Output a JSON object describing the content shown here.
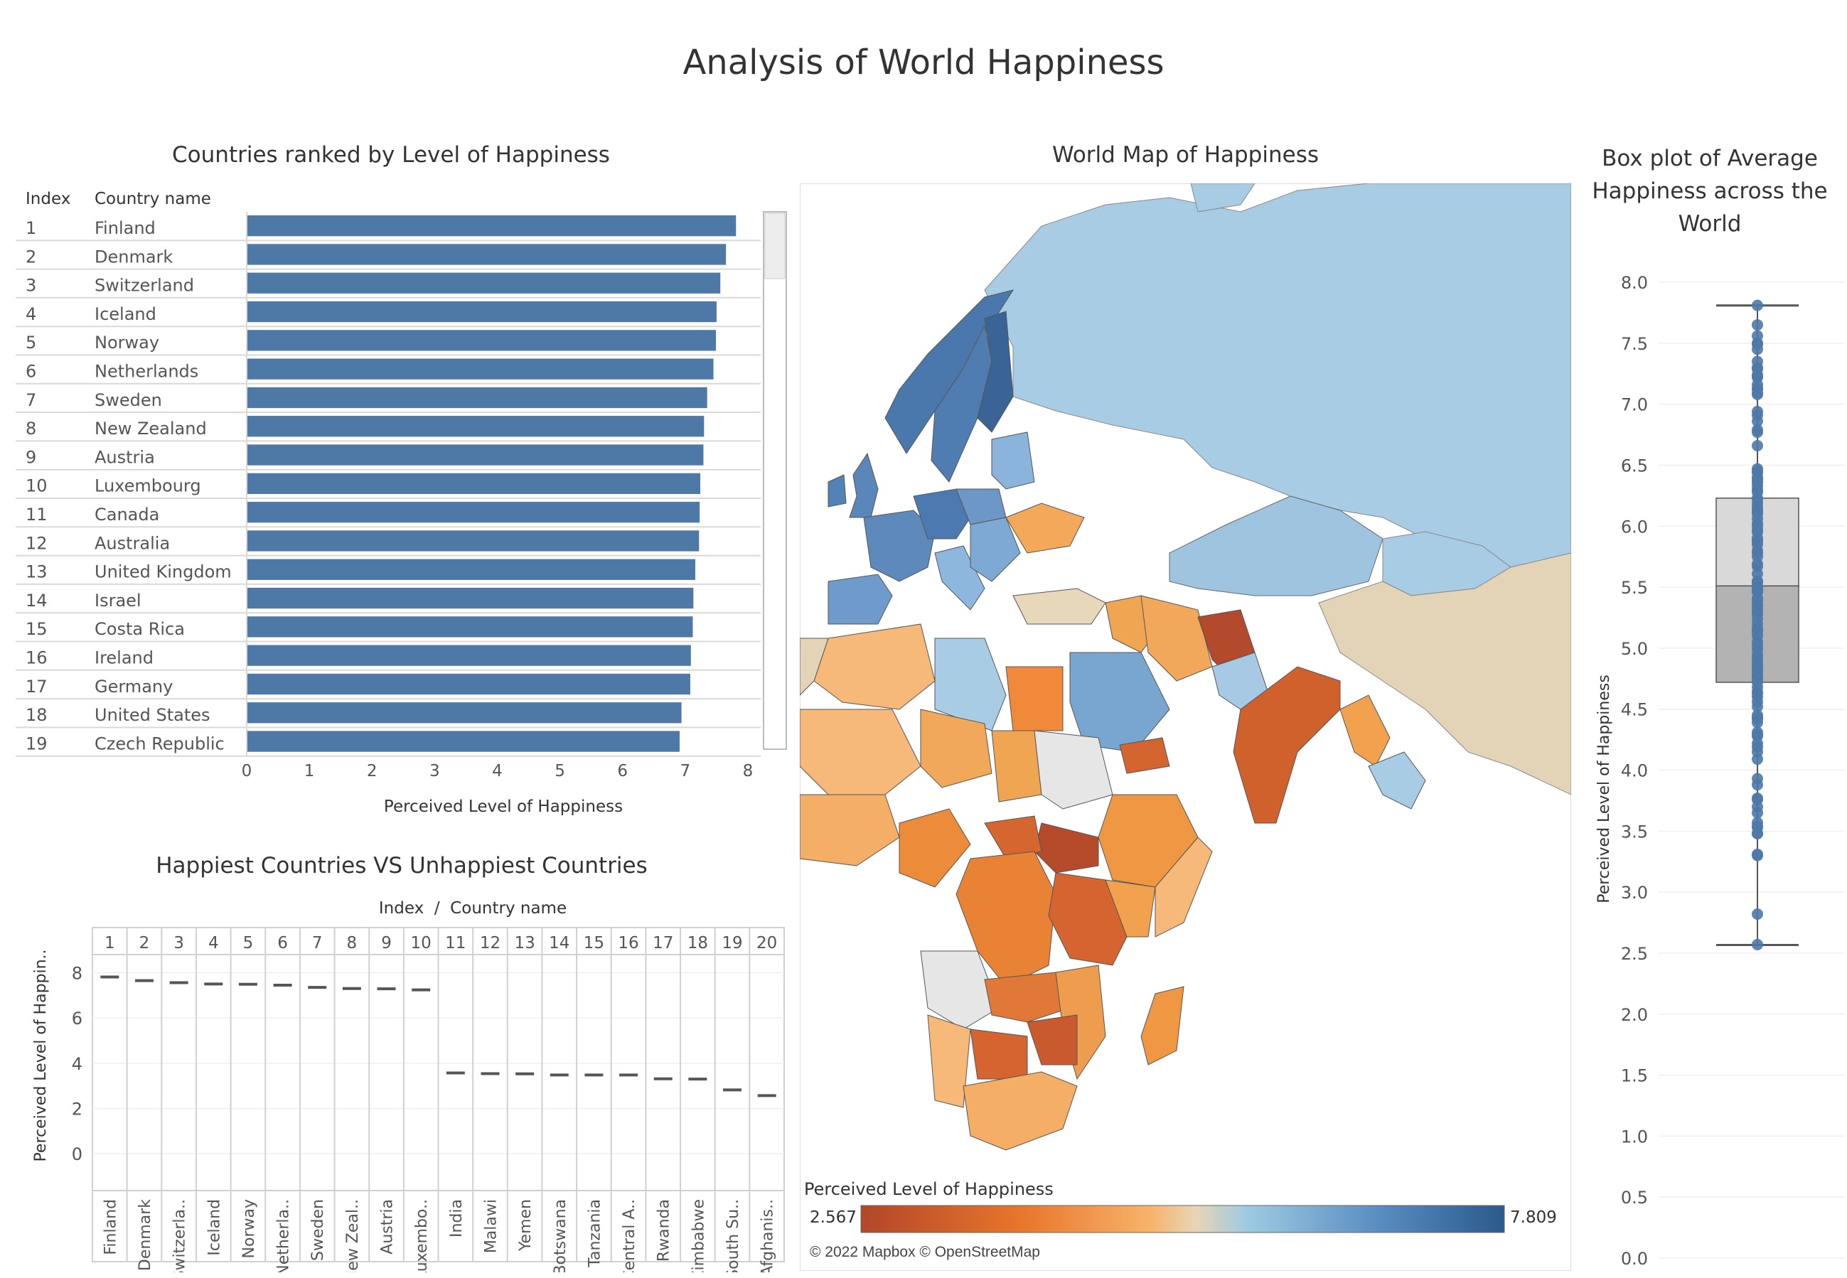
{
  "dashboard": {
    "title": "Analysis of World Happiness"
  },
  "ranked_panel": {
    "title": "Countries ranked by Level of Happiness",
    "index_header": "Index",
    "country_header": "Country name"
  },
  "map_panel": {
    "title": "World Map of Happiness",
    "legend_title": "Perceived Level of Happiness",
    "legend_min": "2.567",
    "legend_max": "7.809",
    "credit": "© 2022 Mapbox © OpenStreetMap",
    "colors": {
      "low": "#b2472a",
      "mid_low": "#f0a050",
      "neutral": "#e8d5b7",
      "mid_high": "#9ecae1",
      "high": "#2b5a8c",
      "no_data": "#e6e6e6",
      "water": "#ffffff"
    }
  },
  "box_panel": {
    "title_lines": [
      "Box plot of Average",
      "Happiness across the",
      "World"
    ]
  },
  "compare_panel": {
    "title": "Happiest Countries VS Unhappiest Countries",
    "header": "Index  /  Country name"
  },
  "chart_data": [
    {
      "type": "bar",
      "orientation": "horizontal",
      "title": "Countries ranked by Level of Happiness",
      "xlabel": "Perceived Level of Happiness",
      "xlim": [
        0,
        8.3
      ],
      "x_ticks": [
        "0",
        "1",
        "2",
        "3",
        "4",
        "5",
        "6",
        "7",
        "8"
      ],
      "bar_color": "#4e79a7",
      "rows": [
        {
          "index": "1",
          "country": "Finland",
          "value": 7.81
        },
        {
          "index": "2",
          "country": "Denmark",
          "value": 7.65
        },
        {
          "index": "3",
          "country": "Switzerland",
          "value": 7.56
        },
        {
          "index": "4",
          "country": "Iceland",
          "value": 7.5
        },
        {
          "index": "5",
          "country": "Norway",
          "value": 7.49
        },
        {
          "index": "6",
          "country": "Netherlands",
          "value": 7.45
        },
        {
          "index": "7",
          "country": "Sweden",
          "value": 7.35
        },
        {
          "index": "8",
          "country": "New Zealand",
          "value": 7.3
        },
        {
          "index": "9",
          "country": "Austria",
          "value": 7.29
        },
        {
          "index": "10",
          "country": "Luxembourg",
          "value": 7.24
        },
        {
          "index": "11",
          "country": "Canada",
          "value": 7.23
        },
        {
          "index": "12",
          "country": "Australia",
          "value": 7.22
        },
        {
          "index": "13",
          "country": "United Kingdom",
          "value": 7.16
        },
        {
          "index": "14",
          "country": "Israel",
          "value": 7.13
        },
        {
          "index": "15",
          "country": "Costa Rica",
          "value": 7.12
        },
        {
          "index": "16",
          "country": "Ireland",
          "value": 7.09
        },
        {
          "index": "17",
          "country": "Germany",
          "value": 7.08
        },
        {
          "index": "18",
          "country": "United States",
          "value": 6.94
        },
        {
          "index": "19",
          "country": "Czech Republic",
          "value": 6.91
        }
      ]
    },
    {
      "type": "scatter",
      "title": "Happiest Countries VS Unhappiest Countries",
      "ylabel": "Perceived Level of Happin..",
      "ylim": [
        -1,
        8.8
      ],
      "y_ticks": [
        "0",
        "2",
        "4",
        "6",
        "8"
      ],
      "categories": [
        {
          "index": "1",
          "label": "Finland",
          "value": 7.81
        },
        {
          "index": "2",
          "label": "Denmark",
          "value": 7.65
        },
        {
          "index": "3",
          "label": "Switzerla..",
          "value": 7.56
        },
        {
          "index": "4",
          "label": "Iceland",
          "value": 7.5
        },
        {
          "index": "5",
          "label": "Norway",
          "value": 7.49
        },
        {
          "index": "6",
          "label": "Netherla..",
          "value": 7.45
        },
        {
          "index": "7",
          "label": "Sweden",
          "value": 7.35
        },
        {
          "index": "8",
          "label": "New Zeal..",
          "value": 7.3
        },
        {
          "index": "9",
          "label": "Austria",
          "value": 7.29
        },
        {
          "index": "10",
          "label": "Luxembo..",
          "value": 7.24
        },
        {
          "index": "11",
          "label": "India",
          "value": 3.57
        },
        {
          "index": "12",
          "label": "Malawi",
          "value": 3.54
        },
        {
          "index": "13",
          "label": "Yemen",
          "value": 3.53
        },
        {
          "index": "14",
          "label": "Botswana",
          "value": 3.48
        },
        {
          "index": "15",
          "label": "Tanzania",
          "value": 3.48
        },
        {
          "index": "16",
          "label": "Central A..",
          "value": 3.48
        },
        {
          "index": "17",
          "label": "Rwanda",
          "value": 3.31
        },
        {
          "index": "18",
          "label": "Zimbabwe",
          "value": 3.3
        },
        {
          "index": "19",
          "label": "South Su..",
          "value": 2.82
        },
        {
          "index": "20",
          "label": "Afghanis..",
          "value": 2.57
        }
      ]
    },
    {
      "type": "box",
      "title": "Box plot of Average Happiness across the World",
      "ylabel": "Perceived Level of Happiness",
      "ylim": [
        0,
        8.0
      ],
      "y_ticks": [
        "0.0",
        "0.5",
        "1.0",
        "1.5",
        "2.0",
        "2.5",
        "3.0",
        "3.5",
        "4.0",
        "4.5",
        "5.0",
        "5.5",
        "6.0",
        "6.5",
        "7.0",
        "7.5",
        "8.0"
      ],
      "min": 2.567,
      "q1": 4.72,
      "median": 5.51,
      "q3": 6.23,
      "max": 7.809,
      "points": [
        7.81,
        7.65,
        7.56,
        7.5,
        7.49,
        7.45,
        7.35,
        7.3,
        7.29,
        7.24,
        7.23,
        7.22,
        7.16,
        7.13,
        7.12,
        7.09,
        7.08,
        6.94,
        6.91,
        6.86,
        6.79,
        6.77,
        6.66,
        6.47,
        6.45,
        6.44,
        6.4,
        6.38,
        6.36,
        6.33,
        6.3,
        6.28,
        6.23,
        6.22,
        6.19,
        6.16,
        6.14,
        6.12,
        6.1,
        6.06,
        6.02,
        6.0,
        5.97,
        5.95,
        5.9,
        5.89,
        5.87,
        5.85,
        5.8,
        5.78,
        5.75,
        5.69,
        5.67,
        5.61,
        5.55,
        5.54,
        5.51,
        5.5,
        5.48,
        5.47,
        5.46,
        5.41,
        5.39,
        5.36,
        5.35,
        5.32,
        5.3,
        5.28,
        5.24,
        5.2,
        5.16,
        5.15,
        5.13,
        5.1,
        5.05,
        5.02,
        4.99,
        4.95,
        4.92,
        4.9,
        4.87,
        4.85,
        4.83,
        4.81,
        4.78,
        4.77,
        4.75,
        4.73,
        4.72,
        4.68,
        4.64,
        4.63,
        4.6,
        4.56,
        4.52,
        4.45,
        4.43,
        4.42,
        4.39,
        4.31,
        4.29,
        4.28,
        4.22,
        4.19,
        4.15,
        4.09,
        3.93,
        3.88,
        3.77,
        3.76,
        3.7,
        3.65,
        3.57,
        3.54,
        3.53,
        3.48,
        3.48,
        3.48,
        3.31,
        3.3,
        2.82,
        2.57
      ],
      "box_color_upper": "#d9d9d9",
      "box_color_lower": "#b3b3b3",
      "point_color": "#4e79a7"
    }
  ]
}
